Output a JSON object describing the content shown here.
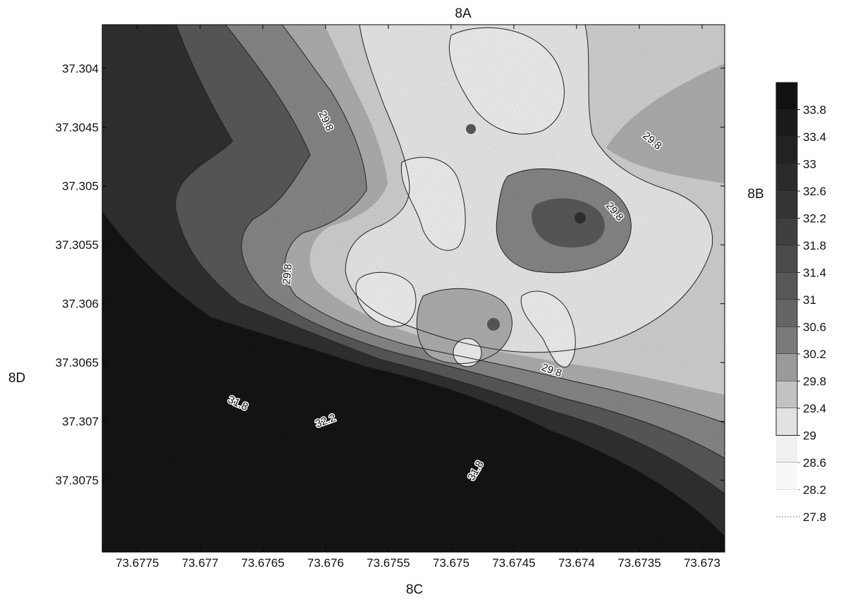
{
  "chart_data": {
    "type": "heatmap",
    "title": "",
    "xlabel": "",
    "ylabel": "",
    "x_ticks": [
      73.6775,
      73.677,
      73.6765,
      73.676,
      73.6755,
      73.675,
      73.6745,
      73.674,
      73.6735,
      73.673
    ],
    "x_tick_labels": [
      "73.6775",
      "73.677",
      "73.6765",
      "73.676",
      "73.6755",
      "73.675",
      "73.6745",
      "73.674",
      "73.6735",
      "73.673"
    ],
    "y_ticks": [
      37.304,
      37.3045,
      37.305,
      37.3055,
      37.306,
      37.3065,
      37.307,
      37.3075
    ],
    "y_tick_labels": [
      "37.304",
      "37.3045",
      "37.305",
      "37.3055",
      "37.306",
      "37.3065",
      "37.307",
      "37.3075"
    ],
    "xlim": [
      73.67778,
      73.67282
    ],
    "ylim": [
      37.30363,
      37.30811
    ],
    "y_inverted": true,
    "x_inverted": true,
    "side_labels": {
      "top": "8A",
      "right": "8B",
      "bottom": "8C",
      "left": "8D"
    },
    "color_levels": [
      33.8,
      33.4,
      33,
      32.6,
      32.2,
      31.8,
      31.4,
      31,
      30.6,
      30.2,
      29.8,
      29.4,
      29,
      28.6,
      28.2,
      27.8
    ],
    "color_level_labels": [
      "33.8",
      "33.4",
      "33",
      "32.6",
      "32.2",
      "31.8",
      "31.4",
      "31",
      "30.6",
      "30.2",
      "29.8",
      "29.4",
      "29",
      "28.6",
      "28.2",
      "27.8"
    ],
    "colors": {
      "darkest": "#151515",
      "dark": "#333333",
      "mid_dark": "#5e5e5e",
      "mid": "#8f8f8f",
      "light_mid": "#b9b9b9",
      "light": "#dedede",
      "lightest": "#f7f7f7"
    },
    "contour_labels": [
      {
        "text": "29.8",
        "x": 73.676,
        "y": 37.30445,
        "angle": 65
      },
      {
        "text": "29.8",
        "x": 73.6734,
        "y": 37.30462,
        "angle": 40
      },
      {
        "text": "29.8",
        "x": 73.6737,
        "y": 37.30522,
        "angle": 50
      },
      {
        "text": "29.8",
        "x": 73.6763,
        "y": 37.30575,
        "angle": -85
      },
      {
        "text": "29.8",
        "x": 73.6742,
        "y": 37.30657,
        "angle": 20
      },
      {
        "text": "31.8",
        "x": 73.6767,
        "y": 37.30685,
        "angle": 25
      },
      {
        "text": "32.2",
        "x": 73.676,
        "y": 37.307,
        "angle": -20
      },
      {
        "text": "31.8",
        "x": 73.6748,
        "y": 37.30742,
        "angle": -60
      }
    ],
    "legend": "right",
    "grid": false
  }
}
